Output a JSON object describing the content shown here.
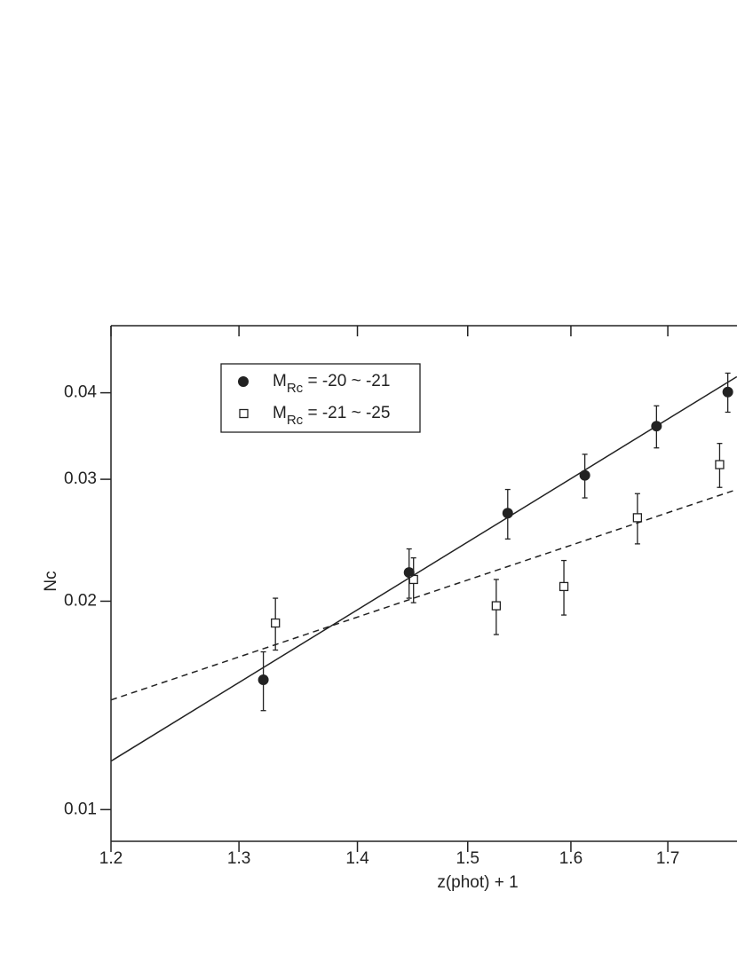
{
  "chart_data": {
    "type": "scatter",
    "xlabel": "z(phot) + 1",
    "ylabel": "Nc",
    "xlog": true,
    "ylog": true,
    "xlim": [
      1.2,
      1.8
    ],
    "ylim": [
      0.009,
      0.05
    ],
    "xticks": [
      1.2,
      1.3,
      1.4,
      1.5,
      1.6,
      1.7
    ],
    "yticks": [
      0.01,
      0.02,
      0.03,
      0.04
    ],
    "legend": "upper left",
    "series": [
      {
        "name": [
          "M",
          "Rc",
          " = -20 ~ -21"
        ],
        "marker": "circle",
        "color": "#222222",
        "x": [
          1.32,
          1.446,
          1.538,
          1.614,
          1.688,
          1.765
        ],
        "values": [
          0.0154,
          0.022,
          0.0268,
          0.0304,
          0.0358,
          0.0401
        ],
        "errors": [
          0.0015,
          0.0018,
          0.0022,
          0.0022,
          0.0025,
          0.0026
        ]
      },
      {
        "name": [
          "M",
          "Rc",
          " = -21 ~ -25"
        ],
        "marker": "square",
        "color": "#222222",
        "x": [
          1.33,
          1.45,
          1.527,
          1.593,
          1.668,
          1.756
        ],
        "values": [
          0.0186,
          0.0215,
          0.0197,
          0.021,
          0.0264,
          0.0315
        ],
        "errors": [
          0.0016,
          0.0016,
          0.0018,
          0.0019,
          0.0022,
          0.0023
        ]
      },
      {
        "marker": "line",
        "dash": false,
        "color": "#222222",
        "x": [
          1.2,
          1.775
        ],
        "values": [
          0.01175,
          0.0422
        ]
      },
      {
        "marker": "line",
        "dash": true,
        "color": "#222222",
        "x": [
          1.2,
          1.775
        ],
        "values": [
          0.0144,
          0.029
        ]
      }
    ]
  }
}
